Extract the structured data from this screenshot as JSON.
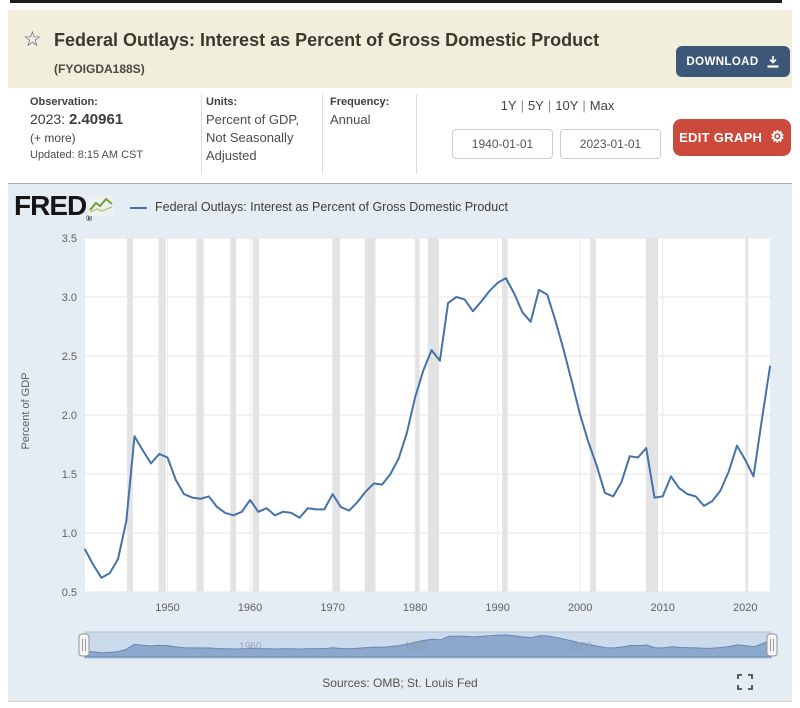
{
  "header": {
    "star": "☆",
    "title": "Federal Outlays: Interest as Percent of Gross Domestic Product",
    "series_id": "(FYOIGDA188S)",
    "download_label": "DOWNLOAD"
  },
  "observation": {
    "label": "Observation:",
    "date_prefix": "2023:",
    "value": "2.40961",
    "more_link": "(+ more)",
    "updated": "Updated: 8:15 AM CST"
  },
  "units": {
    "label": "Units:",
    "value": "Percent of GDP, Not Seasonally Adjusted"
  },
  "frequency": {
    "label": "Frequency:",
    "value": "Annual"
  },
  "range": {
    "presets": [
      "1Y",
      "5Y",
      "10Y",
      "Max"
    ],
    "sep": "|",
    "start_date": "1940-01-01",
    "end_date": "2023-01-01",
    "edit_label": "EDIT GRAPH",
    "gear": "⚙"
  },
  "chart": {
    "brand": "FRED",
    "registered": "®",
    "legend_label": "Federal Outlays: Interest as Percent of Gross Domestic Product",
    "ylabel": "Percent of GDP",
    "sources": "Sources: OMB; St. Louis Fed"
  },
  "chart_data": {
    "type": "line",
    "title": "Federal Outlays: Interest as Percent of Gross Domestic Product",
    "series_name": "Federal Outlays: Interest as Percent of Gross Domestic Product",
    "xlabel": "",
    "ylabel": "Percent of GDP",
    "years_range": [
      1940,
      2023
    ],
    "values": [
      0.86,
      0.73,
      0.62,
      0.66,
      0.78,
      1.1,
      1.82,
      1.7,
      1.59,
      1.67,
      1.64,
      1.45,
      1.33,
      1.3,
      1.29,
      1.31,
      1.22,
      1.17,
      1.15,
      1.18,
      1.28,
      1.18,
      1.21,
      1.15,
      1.18,
      1.17,
      1.13,
      1.21,
      1.2,
      1.2,
      1.33,
      1.22,
      1.19,
      1.26,
      1.35,
      1.42,
      1.41,
      1.5,
      1.63,
      1.85,
      2.15,
      2.38,
      2.55,
      2.46,
      2.95,
      3.0,
      2.98,
      2.88,
      2.96,
      3.05,
      3.12,
      3.16,
      3.03,
      2.87,
      2.79,
      3.06,
      3.02,
      2.8,
      2.55,
      2.28,
      2.0,
      1.77,
      1.57,
      1.34,
      1.31,
      1.43,
      1.65,
      1.64,
      1.72,
      1.3,
      1.31,
      1.48,
      1.38,
      1.33,
      1.31,
      1.23,
      1.27,
      1.36,
      1.52,
      1.74,
      1.62,
      1.48,
      1.95,
      2.41
    ],
    "ylim": [
      0.5,
      3.5
    ],
    "y_ticks": [
      0.5,
      1.0,
      1.5,
      2.0,
      2.5,
      3.0,
      3.5
    ],
    "x_ticks": [
      1950,
      1960,
      1970,
      1980,
      1990,
      2000,
      2010,
      2020
    ],
    "grid": true,
    "legend_position": "top",
    "line_color": "#4572a7",
    "recession_color": "#e3e3e3",
    "recessions": [
      [
        1945.1,
        1945.8
      ],
      [
        1948.9,
        1949.8
      ],
      [
        1953.5,
        1954.4
      ],
      [
        1957.6,
        1958.3
      ],
      [
        1960.3,
        1961.1
      ],
      [
        1969.95,
        1970.9
      ],
      [
        1973.9,
        1975.2
      ],
      [
        1980.0,
        1980.55
      ],
      [
        1981.55,
        1982.9
      ],
      [
        1990.55,
        1991.2
      ],
      [
        2001.2,
        2001.9
      ],
      [
        2007.95,
        2009.45
      ],
      [
        2020.1,
        2020.35
      ]
    ],
    "navigator_labels": [
      {
        "text": "1960",
        "year": 1960
      },
      {
        "text": "1980",
        "year": 1980
      },
      {
        "text": "2000",
        "year": 2000
      }
    ]
  }
}
